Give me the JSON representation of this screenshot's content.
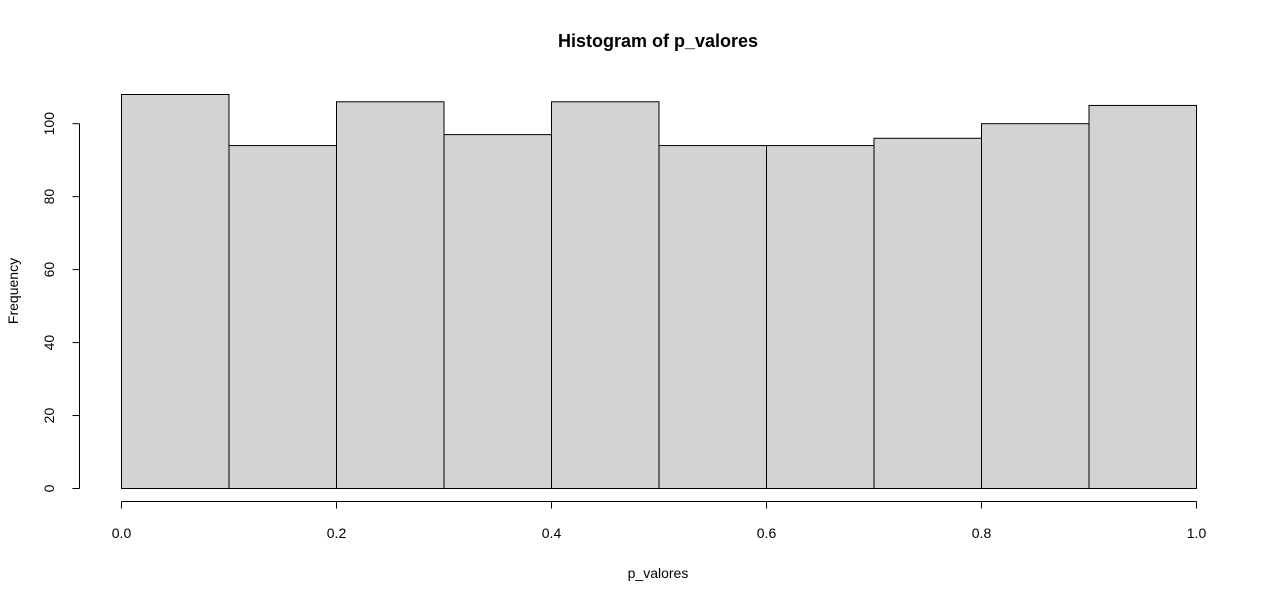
{
  "chart_data": {
    "type": "bar",
    "title": "Histogram of p_valores",
    "xlabel": "p_valores",
    "ylabel": "Frequency",
    "bin_edges": [
      0.0,
      0.1,
      0.2,
      0.3,
      0.4,
      0.5,
      0.6,
      0.7,
      0.8,
      0.9,
      1.0
    ],
    "values": [
      108,
      94,
      106,
      97,
      106,
      94,
      94,
      96,
      100,
      105
    ],
    "xlim": [
      0.0,
      1.0
    ],
    "ylim": [
      0,
      108
    ],
    "xticks": [
      0.0,
      0.2,
      0.4,
      0.6,
      0.8,
      1.0
    ],
    "xtick_labels": [
      "0.0",
      "0.2",
      "0.4",
      "0.6",
      "0.8",
      "1.0"
    ],
    "yticks": [
      0,
      20,
      40,
      60,
      80,
      100
    ],
    "ytick_labels": [
      "0",
      "20",
      "40",
      "60",
      "80",
      "100"
    ],
    "grid": false,
    "colors": {
      "bar_fill": "#d3d3d3",
      "bar_stroke": "#000000"
    }
  }
}
